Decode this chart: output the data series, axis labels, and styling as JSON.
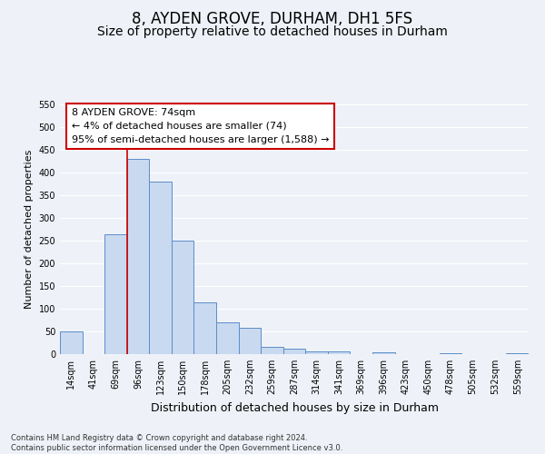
{
  "title": "8, AYDEN GROVE, DURHAM, DH1 5FS",
  "subtitle": "Size of property relative to detached houses in Durham",
  "xlabel": "Distribution of detached houses by size in Durham",
  "ylabel": "Number of detached properties",
  "bar_labels": [
    "14sqm",
    "41sqm",
    "69sqm",
    "96sqm",
    "123sqm",
    "150sqm",
    "178sqm",
    "205sqm",
    "232sqm",
    "259sqm",
    "287sqm",
    "314sqm",
    "341sqm",
    "369sqm",
    "396sqm",
    "423sqm",
    "450sqm",
    "478sqm",
    "505sqm",
    "532sqm",
    "559sqm"
  ],
  "bar_values": [
    50,
    0,
    265,
    430,
    380,
    250,
    115,
    70,
    58,
    17,
    13,
    7,
    6,
    0,
    4,
    0,
    0,
    3,
    0,
    0,
    3
  ],
  "bar_width": 1.0,
  "bar_face_color": "#c9d9f0",
  "bar_edge_color": "#5b8dc8",
  "ylim": [
    0,
    550
  ],
  "yticks": [
    0,
    50,
    100,
    150,
    200,
    250,
    300,
    350,
    400,
    450,
    500,
    550
  ],
  "vline_x": 2.5,
  "vline_color": "#cc0000",
  "annotation_box_text": "8 AYDEN GROVE: 74sqm\n← 4% of detached houses are smaller (74)\n95% of semi-detached houses are larger (1,588) →",
  "annotation_box_facecolor": "white",
  "annotation_box_edgecolor": "#cc0000",
  "footer_text": "Contains HM Land Registry data © Crown copyright and database right 2024.\nContains public sector information licensed under the Open Government Licence v3.0.",
  "background_color": "#eef2f8",
  "grid_color": "white",
  "title_fontsize": 12,
  "subtitle_fontsize": 10,
  "ylabel_fontsize": 8,
  "xlabel_fontsize": 9,
  "tick_fontsize": 7,
  "annotation_fontsize": 8,
  "footer_fontsize": 6
}
